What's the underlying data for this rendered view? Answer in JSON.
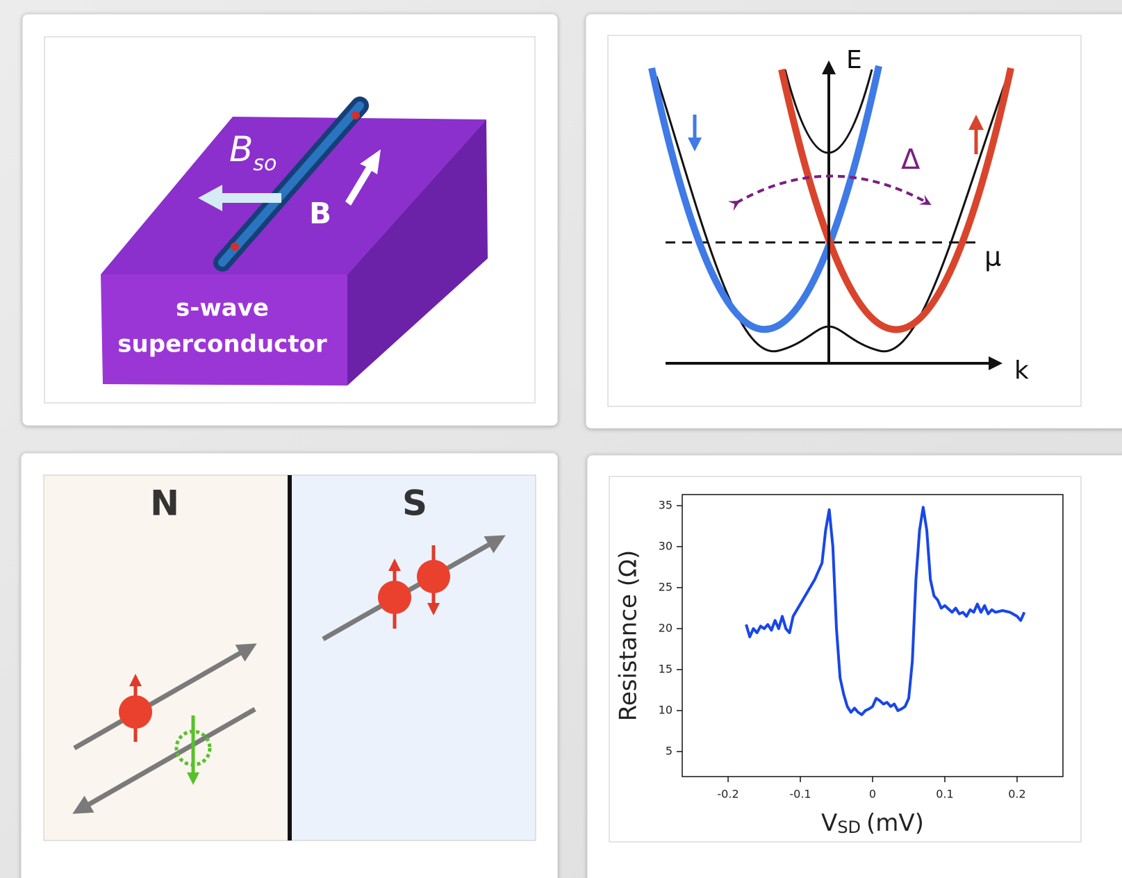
{
  "device_schematic": {
    "field_so": {
      "symbol": "B",
      "subscript": "so"
    },
    "field": "B",
    "material": [
      "s-wave",
      "superconductor"
    ]
  },
  "band_diagram": {
    "energy_axis": "E",
    "momentum_axis": "k",
    "gap": "Δ",
    "chemical_potential": "μ"
  },
  "andreev_reflection": {
    "normal": "N",
    "superconductor": "S"
  },
  "chart_data": {
    "type": "line",
    "ylabel": "Resistance (Ω)",
    "xlabel": {
      "symbol": "V",
      "subscript": "SD",
      "unit": "(mV)"
    },
    "x": [
      -0.175,
      -0.17,
      -0.165,
      -0.16,
      -0.155,
      -0.15,
      -0.145,
      -0.14,
      -0.135,
      -0.13,
      -0.125,
      -0.12,
      -0.115,
      -0.11,
      -0.1,
      -0.09,
      -0.08,
      -0.07,
      -0.065,
      -0.06,
      -0.055,
      -0.05,
      -0.045,
      -0.04,
      -0.035,
      -0.03,
      -0.025,
      -0.02,
      -0.015,
      -0.01,
      -0.005,
      0,
      0.005,
      0.01,
      0.015,
      0.02,
      0.025,
      0.03,
      0.035,
      0.04,
      0.045,
      0.05,
      0.055,
      0.06,
      0.065,
      0.07,
      0.075,
      0.08,
      0.085,
      0.09,
      0.095,
      0.1,
      0.11,
      0.115,
      0.12,
      0.125,
      0.13,
      0.135,
      0.14,
      0.145,
      0.15,
      0.155,
      0.16,
      0.165,
      0.17,
      0.18,
      0.19,
      0.2,
      0.205,
      0.21
    ],
    "series": [
      {
        "color": "#1846e8",
        "values": [
          20.5,
          19,
          20,
          19.5,
          20.3,
          20,
          20.5,
          19.8,
          21,
          20,
          21.5,
          20,
          19.5,
          21.5,
          23,
          24.5,
          26,
          28,
          32,
          34.5,
          30,
          20,
          14,
          12,
          10.5,
          9.8,
          10.3,
          9.8,
          9.5,
          10,
          10.2,
          10.5,
          11.5,
          11.2,
          10.8,
          11,
          10.5,
          10.8,
          10,
          10.2,
          10.5,
          11.5,
          16,
          26,
          32,
          34.8,
          32,
          26,
          24,
          23.5,
          22.5,
          22.8,
          22,
          22.5,
          21.8,
          22,
          21.5,
          22.3,
          22,
          23,
          22,
          22.8,
          21.8,
          22.3,
          22,
          22.2,
          22,
          21.5,
          21,
          22
        ]
      }
    ],
    "xlim": [
      -0.2635,
      0.2635
    ],
    "ylim": [
      1.95,
      36.35
    ],
    "xticks": [
      -0.2,
      -0.1,
      0,
      0.1,
      0.2
    ],
    "yticks": [
      5,
      10,
      15,
      20,
      25,
      30,
      35
    ]
  }
}
